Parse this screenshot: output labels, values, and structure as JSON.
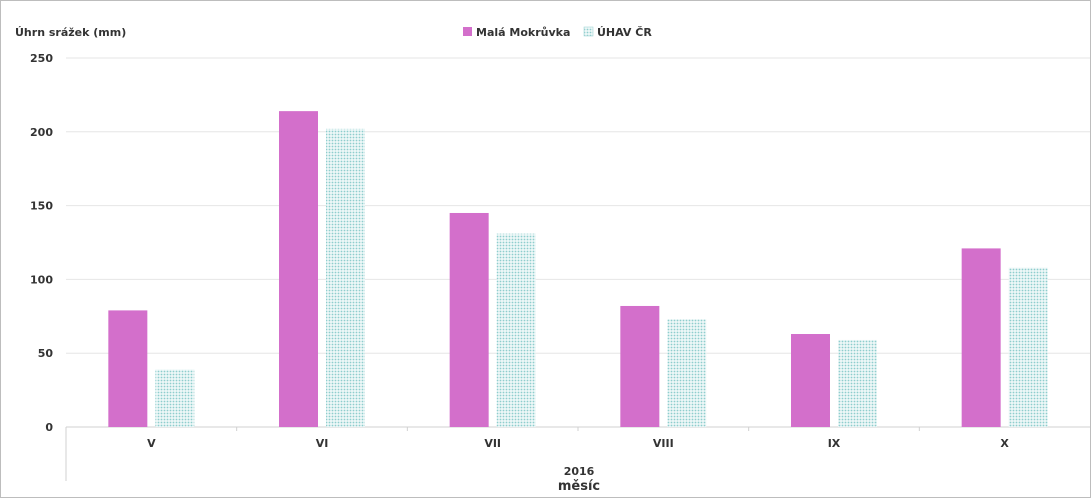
{
  "chart_data": {
    "type": "bar",
    "ylabel": "Úhrn srážek (mm)",
    "xlabel_year": "2016",
    "xlabel": "měsíc",
    "categories": [
      "V",
      "VI",
      "VII",
      "VIII",
      "IX",
      "X"
    ],
    "series": [
      {
        "name": "Malá Mokrůvka",
        "color": "#d36fcb",
        "values": [
          79,
          214,
          145,
          82,
          63,
          121
        ]
      },
      {
        "name": "ÚHAV ČR",
        "color": "#bfe3e3",
        "pattern": "dotted",
        "values": [
          39,
          202,
          131,
          73,
          59,
          108
        ]
      }
    ],
    "ylim": [
      0,
      250
    ],
    "yticks": [
      0,
      50,
      100,
      150,
      200,
      250
    ],
    "grid": true,
    "legend_position": "top-center"
  }
}
